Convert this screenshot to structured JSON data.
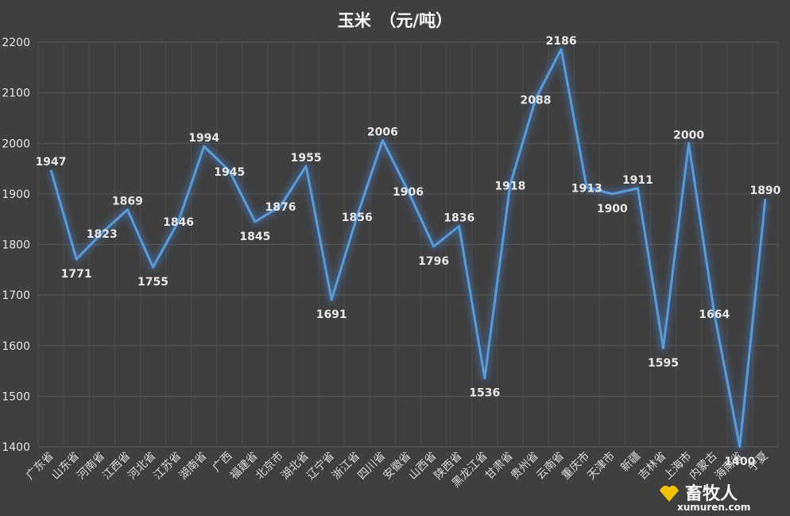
{
  "chart_data": {
    "type": "line",
    "title": "玉米　（元/吨）",
    "categories": [
      "广东省",
      "山东省",
      "河南省",
      "江西省",
      "河北省",
      "江苏省",
      "湖南省",
      "广西",
      "福建省",
      "北京市",
      "湖北省",
      "辽宁省",
      "浙江省",
      "四川省",
      "安徽省",
      "山西省",
      "陕西省",
      "黑龙江省",
      "甘肃省",
      "贵州省",
      "云南省",
      "重庆市",
      "天津市",
      "新疆",
      "吉林省",
      "上海市",
      "内蒙古",
      "海南省",
      "宁夏"
    ],
    "series": [
      {
        "values": [
          1947,
          1771,
          1823,
          1869,
          1755,
          1846,
          1994,
          1945,
          1845,
          1876,
          1955,
          1691,
          1856,
          2006,
          1906,
          1796,
          1836,
          1536,
          1918,
          2088,
          2186,
          1913,
          1900,
          1911,
          1595,
          2000,
          1664,
          1400,
          1890
        ]
      }
    ],
    "ylim": [
      1400,
      2200
    ],
    "yticks": [
      1400,
      1500,
      1600,
      1700,
      1800,
      1900,
      2000,
      2100,
      2200
    ],
    "grid": true,
    "line_color": "#5b9bd5"
  },
  "watermark": {
    "text": "畜牧人",
    "url": "xumuren.com"
  }
}
